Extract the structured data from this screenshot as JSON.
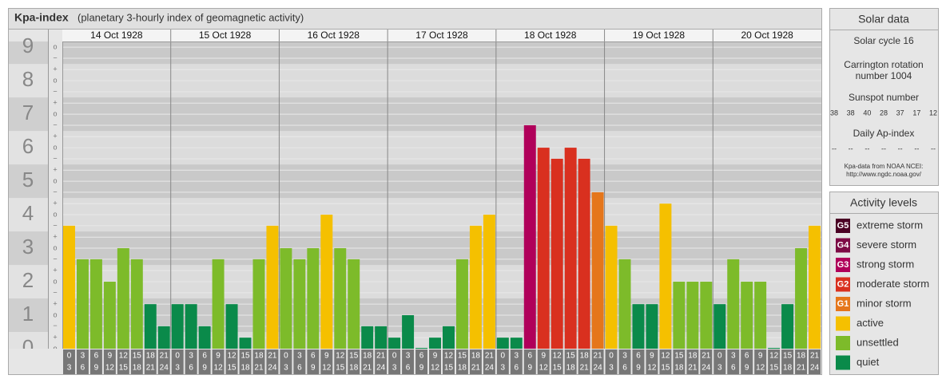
{
  "header": {
    "title": "Kpa-index",
    "subtitle": "(planetary 3-hourly index of geomagnetic activity)"
  },
  "chart_data": {
    "type": "bar",
    "days": [
      "14 Oct 1928",
      "15 Oct 1928",
      "16 Oct 1928",
      "17 Oct 1928",
      "18 Oct 1928",
      "19 Oct 1928",
      "20 Oct 1928"
    ],
    "intervals": [
      {
        "start": "0",
        "end": "3"
      },
      {
        "start": "3",
        "end": "6"
      },
      {
        "start": "6",
        "end": "9"
      },
      {
        "start": "9",
        "end": "12"
      },
      {
        "start": "12",
        "end": "15"
      },
      {
        "start": "15",
        "end": "18"
      },
      {
        "start": "18",
        "end": "21"
      },
      {
        "start": "21",
        "end": "24"
      }
    ],
    "series": [
      {
        "values": [
          3.67,
          2.67,
          2.67,
          2,
          3,
          2.67,
          1.33,
          0.67,
          1.33,
          1.33,
          0.67,
          2.67,
          1.33,
          0.33,
          2.67,
          3.67,
          3,
          2.67,
          3,
          4,
          3,
          2.67,
          0.67,
          0.67,
          0.33,
          1,
          0,
          0.33,
          0.67,
          2.67,
          3.67,
          4,
          0.33,
          0.33,
          6.67,
          6,
          5.67,
          6,
          5.67,
          4.67,
          3.67,
          2.67,
          1.33,
          1.33,
          4.33,
          2,
          2,
          2,
          1.33,
          2.67,
          2,
          2,
          0,
          1.33,
          3,
          3.67
        ],
        "colors": [
          "#f5c000",
          "#7dbb2a",
          "#7dbb2a",
          "#7dbb2a",
          "#7dbb2a",
          "#7dbb2a",
          "#0a8a4a",
          "#0a8a4a",
          "#0a8a4a",
          "#0a8a4a",
          "#0a8a4a",
          "#7dbb2a",
          "#0a8a4a",
          "#0a8a4a",
          "#7dbb2a",
          "#f5c000",
          "#7dbb2a",
          "#7dbb2a",
          "#7dbb2a",
          "#f5c000",
          "#7dbb2a",
          "#7dbb2a",
          "#0a8a4a",
          "#0a8a4a",
          "#0a8a4a",
          "#0a8a4a",
          "#0a8a4a",
          "#0a8a4a",
          "#0a8a4a",
          "#7dbb2a",
          "#f5c000",
          "#f5c000",
          "#0a8a4a",
          "#0a8a4a",
          "#b0005a",
          "#d9301f",
          "#d9301f",
          "#d9301f",
          "#d9301f",
          "#e5761b",
          "#f5c000",
          "#7dbb2a",
          "#0a8a4a",
          "#0a8a4a",
          "#f5c000",
          "#7dbb2a",
          "#7dbb2a",
          "#7dbb2a",
          "#0a8a4a",
          "#7dbb2a",
          "#7dbb2a",
          "#7dbb2a",
          "#0a8a4a",
          "#0a8a4a",
          "#7dbb2a",
          "#f5c000"
        ]
      }
    ],
    "ylim": [
      0,
      9.17
    ],
    "yticks": [
      0,
      1,
      2,
      3,
      4,
      5,
      6,
      7,
      8,
      9
    ],
    "minor_yticks": [
      {
        "value": 0,
        "label": "o"
      },
      {
        "value": 0.33,
        "label": "+"
      },
      {
        "value": 0.67,
        "label": "−"
      },
      {
        "value": 1,
        "label": "o"
      },
      {
        "value": 1.33,
        "label": "+"
      },
      {
        "value": 1.67,
        "label": "−"
      },
      {
        "value": 2,
        "label": "o"
      },
      {
        "value": 2.33,
        "label": "+"
      },
      {
        "value": 2.67,
        "label": "−"
      },
      {
        "value": 3,
        "label": "o"
      },
      {
        "value": 3.33,
        "label": "+"
      },
      {
        "value": 3.67,
        "label": "−"
      },
      {
        "value": 4,
        "label": "o"
      },
      {
        "value": 4.33,
        "label": "+"
      },
      {
        "value": 4.67,
        "label": "−"
      },
      {
        "value": 5,
        "label": "o"
      },
      {
        "value": 5.33,
        "label": "+"
      },
      {
        "value": 5.67,
        "label": "−"
      },
      {
        "value": 6,
        "label": "o"
      },
      {
        "value": 6.33,
        "label": "+"
      },
      {
        "value": 6.67,
        "label": "−"
      },
      {
        "value": 7,
        "label": "o"
      },
      {
        "value": 7.33,
        "label": "+"
      },
      {
        "value": 7.67,
        "label": "−"
      },
      {
        "value": 8,
        "label": "o"
      },
      {
        "value": 8.33,
        "label": "+"
      },
      {
        "value": 8.67,
        "label": "−"
      },
      {
        "value": 9,
        "label": "o"
      }
    ],
    "grid": true
  },
  "solar_data": {
    "title": "Solar data",
    "cycle": "Solar cycle 16",
    "rotation_line1": "Carrington rotation",
    "rotation_line2": "number 1004",
    "sunspot_title": "Sunspot number",
    "sunspots": [
      38,
      38,
      40,
      28,
      37,
      17,
      12
    ],
    "ap_title": "Daily Ap-index",
    "ap": [
      "--",
      "--",
      "--",
      "--",
      "--",
      "--",
      "--"
    ],
    "source": "Kpa-data from NOAA NCEI:",
    "url": "http://www.ngdc.noaa.gov/"
  },
  "activity_levels": {
    "title": "Activity levels",
    "items": [
      {
        "badge": "G5",
        "label": "extreme storm",
        "color": "#4a0024"
      },
      {
        "badge": "G4",
        "label": "severe storm",
        "color": "#7d0a45"
      },
      {
        "badge": "G3",
        "label": "strong storm",
        "color": "#b0005a"
      },
      {
        "badge": "G2",
        "label": "moderate storm",
        "color": "#d9301f"
      },
      {
        "badge": "G1",
        "label": "minor storm",
        "color": "#e5761b"
      },
      {
        "label": "active",
        "color": "#f5c000"
      },
      {
        "label": "unsettled",
        "color": "#7dbb2a"
      },
      {
        "label": "quiet",
        "color": "#0a8a4a"
      }
    ]
  }
}
